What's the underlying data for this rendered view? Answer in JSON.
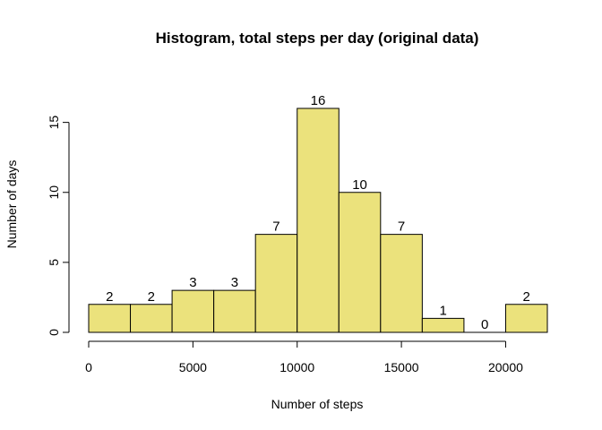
{
  "chart_data": {
    "type": "bar",
    "title": "Histogram, total steps per day (original data)",
    "xlabel": "Number of steps",
    "ylabel": "Number of days",
    "bin_edges": [
      0,
      2000,
      4000,
      6000,
      8000,
      10000,
      12000,
      14000,
      16000,
      18000,
      20000,
      22000
    ],
    "values": [
      2,
      2,
      3,
      3,
      7,
      16,
      10,
      7,
      1,
      0,
      2
    ],
    "data_labels": [
      "2",
      "2",
      "3",
      "3",
      "7",
      "16",
      "10",
      "7",
      "1",
      "0",
      "2"
    ],
    "xlim": [
      0,
      22000
    ],
    "ylim": [
      0,
      16
    ],
    "x_ticks": [
      0,
      5000,
      10000,
      15000,
      20000
    ],
    "x_tick_labels": [
      "0",
      "5000",
      "10000",
      "15000",
      "20000"
    ],
    "y_ticks": [
      0,
      5,
      10,
      15
    ],
    "y_tick_labels": [
      "0",
      "5",
      "10",
      "15"
    ],
    "bar_color": "#ebe27c",
    "grid": false,
    "legend": "none"
  }
}
